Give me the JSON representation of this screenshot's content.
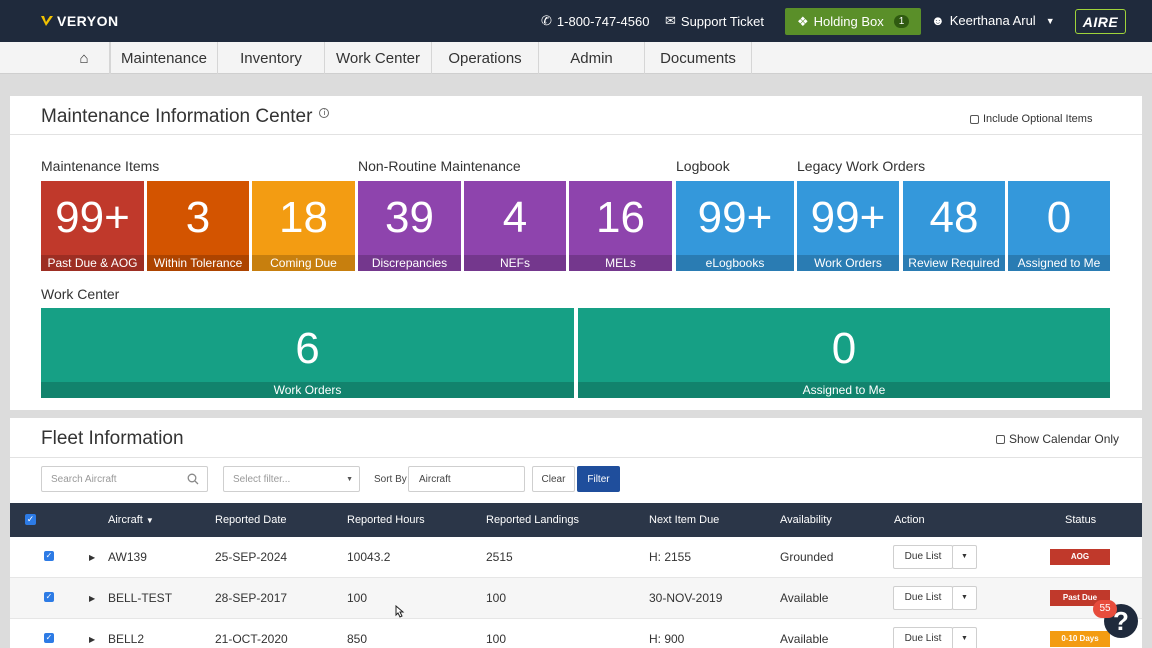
{
  "topbar": {
    "logo": "VERYON",
    "phone": "1-800-747-4560",
    "support": "Support Ticket",
    "holding_label": "Holding Box",
    "holding_count": "1",
    "user_name": "Keerthana Arul",
    "brand": "AIRE",
    "colors": {
      "bar": "#1f2a3c",
      "holding": "#5a8f29",
      "brand_border": "#9fd33a"
    }
  },
  "nav": {
    "home_icon": "home-icon",
    "items": [
      "Maintenance",
      "Inventory",
      "Work Center",
      "Operations",
      "Admin",
      "Documents"
    ]
  },
  "mic": {
    "title": "Maintenance Information Center",
    "info_icon": "info-icon",
    "include_optional": "Include Optional Items",
    "groups": {
      "maintenance": "Maintenance Items",
      "non_routine": "Non-Routine Maintenance",
      "logbook": "Logbook",
      "legacy": "Legacy Work Orders",
      "work_center": "Work Center"
    },
    "tiles": [
      {
        "value": "99+",
        "label": "Past Due & AOG",
        "color": "#c0392b"
      },
      {
        "value": "3",
        "label": "Within Tolerance",
        "color": "#d35400"
      },
      {
        "value": "18",
        "label": "Coming Due",
        "color": "#f39c12"
      },
      {
        "value": "39",
        "label": "Discrepancies",
        "color": "#8e44ad"
      },
      {
        "value": "4",
        "label": "NEFs",
        "color": "#8e44ad"
      },
      {
        "value": "16",
        "label": "MELs",
        "color": "#8e44ad"
      },
      {
        "value": "99+",
        "label": "eLogbooks",
        "color": "#3498db"
      },
      {
        "value": "99+",
        "label": "Work Orders",
        "color": "#3498db"
      },
      {
        "value": "48",
        "label": "Review Required",
        "color": "#3498db"
      },
      {
        "value": "0",
        "label": "Assigned to Me",
        "color": "#3498db"
      }
    ],
    "work_center_tiles": [
      {
        "value": "6",
        "label": "Work Orders",
        "color": "#16a085"
      },
      {
        "value": "0",
        "label": "Assigned to Me",
        "color": "#16a085"
      }
    ]
  },
  "fleet": {
    "title": "Fleet Information",
    "show_calendar": "Show Calendar Only",
    "search_placeholder": "Search Aircraft",
    "filter_placeholder": "Select filter...",
    "sort_by_label": "Sort By",
    "sort_by_value": "Aircraft",
    "clear_label": "Clear",
    "filter_label": "Filter",
    "columns": [
      "Aircraft",
      "Reported Date",
      "Reported Hours",
      "Reported Landings",
      "Next Item Due",
      "Availability",
      "Action",
      "Status"
    ],
    "rows": [
      {
        "aircraft": "AW139",
        "date": "25-SEP-2024",
        "hours": "10043.2",
        "landings": "2515",
        "next_due": "H: 2155",
        "availability": "Grounded",
        "action": "Due List",
        "status": "AOG",
        "status_color": "#c0392b"
      },
      {
        "aircraft": "BELL-TEST",
        "date": "28-SEP-2017",
        "hours": "100",
        "landings": "100",
        "next_due": "30-NOV-2019",
        "availability": "Available",
        "action": "Due List",
        "status": "Past Due",
        "status_color": "#c0392b"
      },
      {
        "aircraft": "BELL2",
        "date": "21-OCT-2020",
        "hours": "850",
        "landings": "100",
        "next_due": "H: 900",
        "availability": "Available",
        "action": "Due List",
        "status": "0-10 Days",
        "status_color": "#f39c12"
      }
    ]
  },
  "help": {
    "badge": "55",
    "label": "?"
  }
}
